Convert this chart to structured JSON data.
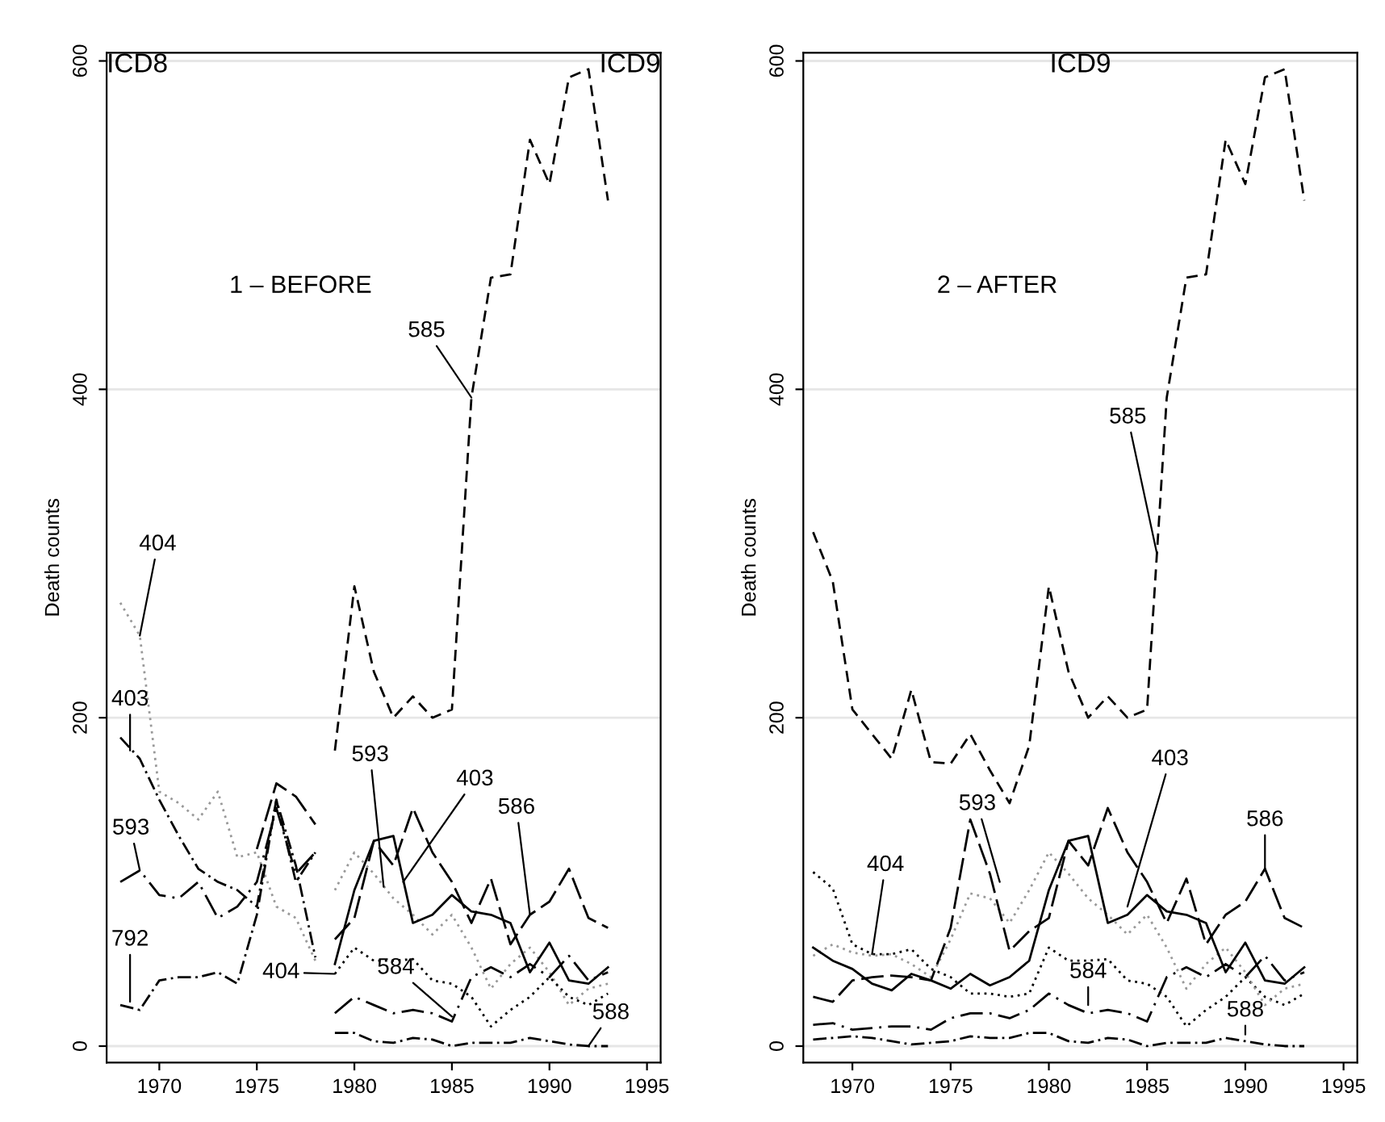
{
  "chart_data": [
    {
      "type": "line",
      "ylabel": "Death counts",
      "xlim": [
        1967.3,
        1995.7
      ],
      "ylim": [
        -10,
        605
      ],
      "xticks": [
        1970,
        1975,
        1980,
        1985,
        1990,
        1995
      ],
      "yticks": [
        0,
        200,
        400,
        600
      ],
      "grid": "y",
      "legend": false,
      "annotations": [
        "ICD8",
        "ICD9",
        "1 – BEFORE",
        {
          "text": "585",
          "x": 1986,
          "y": 395
        },
        {
          "text": "404",
          "x": 1969,
          "y": 250
        },
        {
          "text": "403",
          "x": 1968.5,
          "y": 180
        },
        {
          "text": "593",
          "x": 1969,
          "y": 107
        },
        {
          "text": "792",
          "x": 1968.5,
          "y": 27
        },
        {
          "text": "593",
          "x": 1981.5,
          "y": 97
        },
        {
          "text": "403",
          "x": 1982.5,
          "y": 100
        },
        {
          "text": "586",
          "x": 1989,
          "y": 80
        },
        {
          "text": "404",
          "x": 1979,
          "y": 44
        },
        {
          "text": "584",
          "x": 1985,
          "y": 18
        },
        {
          "text": "588",
          "x": 1992,
          "y": 0
        }
      ],
      "series": [
        {
          "color": "#000000",
          "line_style": "dashed",
          "x": [
            1979,
            1980,
            1981,
            1982,
            1983,
            1984,
            1985,
            1986,
            1987,
            1988,
            1989,
            1990,
            1991,
            1992,
            1993
          ],
          "values": [
            180,
            280,
            228,
            200,
            213,
            200,
            205,
            395,
            468,
            470,
            552,
            525,
            590,
            595,
            515
          ]
        },
        {
          "color": "#999999",
          "line_style": "dotted",
          "x": [
            1968,
            1969,
            1970,
            1971,
            1972,
            1973,
            1974,
            1975,
            1976,
            1977,
            1978
          ],
          "values": [
            270,
            250,
            155,
            148,
            138,
            155,
            115,
            118,
            85,
            78,
            52
          ]
        },
        {
          "color": "#000000",
          "line_style": "dashdot",
          "x": [
            1968,
            1969,
            1970,
            1971,
            1972,
            1973,
            1974,
            1975,
            1976,
            1977,
            1978
          ],
          "values": [
            188,
            175,
            150,
            128,
            108,
            100,
            95,
            85,
            150,
            110,
            54
          ]
        },
        {
          "color": "#000000",
          "line_style": "longdashdot",
          "x": [
            1968,
            1969,
            1970,
            1971,
            1972,
            1973,
            1974,
            1975,
            1976,
            1977,
            1978
          ],
          "values": [
            100,
            107,
            92,
            90,
            100,
            78,
            85,
            100,
            145,
            105,
            118
          ]
        },
        {
          "color": "#000000",
          "line_style": "longdash",
          "x": [
            1975,
            1976,
            1977,
            1978
          ],
          "values": [
            120,
            160,
            152,
            135
          ]
        },
        {
          "color": "#000000",
          "line_style": "dashdot",
          "x": [
            1968,
            1969,
            1970,
            1971,
            1972,
            1973,
            1974,
            1975,
            1976,
            1977,
            1978
          ],
          "values": [
            25,
            22,
            40,
            42,
            42,
            45,
            38,
            80,
            150,
            100,
            118
          ]
        },
        {
          "color": "#999999",
          "line_style": "dotted",
          "x": [
            1979,
            1980,
            1981,
            1982,
            1983,
            1984,
            1985,
            1986,
            1987,
            1988,
            1989,
            1990,
            1991,
            1992,
            1993
          ],
          "values": [
            95,
            118,
            105,
            90,
            80,
            68,
            80,
            60,
            35,
            50,
            60,
            45,
            25,
            35,
            38
          ]
        },
        {
          "color": "#000000",
          "line_style": "solid",
          "x": [
            1979,
            1980,
            1981,
            1982,
            1983,
            1984,
            1985,
            1986,
            1987,
            1988,
            1989,
            1990,
            1991,
            1992,
            1993
          ],
          "values": [
            50,
            95,
            125,
            128,
            75,
            80,
            92,
            82,
            80,
            75,
            45,
            63,
            40,
            38,
            48
          ]
        },
        {
          "color": "#000000",
          "line_style": "longdash",
          "x": [
            1979,
            1980,
            1981,
            1982,
            1983,
            1984,
            1985,
            1986,
            1987,
            1988,
            1989,
            1990,
            1991,
            1992,
            1993
          ],
          "values": [
            65,
            78,
            125,
            110,
            145,
            118,
            100,
            75,
            102,
            62,
            80,
            88,
            108,
            78,
            72
          ]
        },
        {
          "color": "#000000",
          "line_style": "dotted",
          "x": [
            1979,
            1980,
            1981,
            1982,
            1983,
            1984,
            1985,
            1986,
            1987,
            1988,
            1989,
            1990,
            1991,
            1992,
            1993
          ],
          "values": [
            44,
            60,
            52,
            52,
            53,
            40,
            38,
            30,
            12,
            22,
            30,
            42,
            30,
            25,
            32
          ]
        },
        {
          "color": "#000000",
          "line_style": "longdashdot",
          "x": [
            1979,
            1980,
            1981,
            1982,
            1983,
            1984,
            1985,
            1986,
            1987,
            1988,
            1989,
            1990,
            1991,
            1992,
            1993
          ],
          "values": [
            20,
            30,
            25,
            20,
            22,
            20,
            15,
            42,
            48,
            42,
            50,
            42,
            55,
            40,
            45
          ]
        },
        {
          "color": "#000000",
          "line_style": "dashdot",
          "x": [
            1979,
            1980,
            1981,
            1982,
            1983,
            1984,
            1985,
            1986,
            1987,
            1988,
            1989,
            1990,
            1991,
            1992,
            1993
          ],
          "values": [
            8,
            8,
            3,
            2,
            5,
            4,
            0,
            2,
            2,
            2,
            5,
            3,
            1,
            0,
            0
          ]
        }
      ]
    },
    {
      "type": "line",
      "ylabel": "Death counts",
      "xlim": [
        1967.5,
        1995.7
      ],
      "ylim": [
        -10,
        605
      ],
      "xticks": [
        1970,
        1975,
        1980,
        1985,
        1990,
        1995
      ],
      "yticks": [
        0,
        200,
        400,
        600
      ],
      "grid": "y",
      "legend": false,
      "annotations": [
        "ICD9",
        "2 – AFTER",
        {
          "text": "585",
          "x": 1985.5,
          "y": 300
        },
        {
          "text": "404",
          "x": 1971,
          "y": 56
        },
        {
          "text": "593",
          "x": 1977.5,
          "y": 100
        },
        {
          "text": "403",
          "x": 1984,
          "y": 85
        },
        {
          "text": "586",
          "x": 1991,
          "y": 108
        },
        {
          "text": "584",
          "x": 1982,
          "y": 25
        },
        {
          "text": "588",
          "x": 1990,
          "y": 7
        }
      ],
      "series": [
        {
          "color": "#000000",
          "line_style": "dashed",
          "x": [
            1968,
            1969,
            1970,
            1971,
            1972,
            1973,
            1974,
            1975,
            1976,
            1977,
            1978,
            1979,
            1980,
            1981,
            1982,
            1983,
            1984,
            1985,
            1986,
            1987,
            1988,
            1989,
            1990,
            1991,
            1992,
            1993
          ],
          "values": [
            313,
            283,
            205,
            190,
            175,
            217,
            173,
            172,
            190,
            168,
            148,
            183,
            280,
            228,
            200,
            213,
            200,
            205,
            395,
            468,
            470,
            552,
            525,
            590,
            595,
            515
          ]
        },
        {
          "color": "#000000",
          "line_style": "dotted",
          "x": [
            1968,
            1969,
            1970,
            1971,
            1972,
            1973,
            1974,
            1975,
            1976,
            1977,
            1978,
            1979,
            1980,
            1981,
            1982,
            1983,
            1984,
            1985,
            1986,
            1987,
            1988,
            1989,
            1990,
            1991,
            1992,
            1993
          ],
          "values": [
            106,
            96,
            62,
            56,
            56,
            59,
            47,
            42,
            32,
            32,
            30,
            32,
            60,
            52,
            52,
            53,
            40,
            38,
            30,
            12,
            22,
            30,
            42,
            30,
            25,
            32
          ]
        },
        {
          "color": "#999999",
          "line_style": "dotted",
          "x": [
            1968,
            1969,
            1970,
            1971,
            1972,
            1973,
            1974,
            1975,
            1976,
            1977,
            1978,
            1979,
            1980,
            1981,
            1982,
            1983,
            1984,
            1985,
            1986,
            1987,
            1988,
            1989,
            1990,
            1991,
            1992,
            1993
          ],
          "values": [
            55,
            62,
            57,
            55,
            56,
            50,
            42,
            65,
            93,
            90,
            75,
            95,
            118,
            105,
            90,
            80,
            68,
            80,
            60,
            35,
            50,
            60,
            45,
            25,
            35,
            38
          ]
        },
        {
          "color": "#000000",
          "line_style": "solid",
          "x": [
            1968,
            1969,
            1970,
            1971,
            1972,
            1973,
            1974,
            1975,
            1976,
            1977,
            1978,
            1979,
            1980,
            1981,
            1982,
            1983,
            1984,
            1985,
            1986,
            1987,
            1988,
            1989,
            1990,
            1991,
            1992,
            1993
          ],
          "values": [
            60,
            52,
            47,
            38,
            34,
            44,
            40,
            35,
            44,
            37,
            42,
            52,
            95,
            125,
            128,
            75,
            80,
            92,
            82,
            80,
            75,
            45,
            63,
            40,
            38,
            48
          ]
        },
        {
          "color": "#000000",
          "line_style": "longdash",
          "x": [
            1968,
            1969,
            1970,
            1971,
            1972,
            1973,
            1974,
            1975,
            1976,
            1977,
            1978,
            1979,
            1980,
            1981,
            1982,
            1983,
            1984,
            1985,
            1986,
            1987,
            1988,
            1989,
            1990,
            1991,
            1992,
            1993
          ],
          "values": [
            30,
            27,
            40,
            42,
            43,
            42,
            40,
            72,
            138,
            105,
            58,
            70,
            78,
            125,
            110,
            145,
            118,
            100,
            75,
            102,
            62,
            80,
            88,
            108,
            78,
            72
          ]
        },
        {
          "color": "#000000",
          "line_style": "longdashdot",
          "x": [
            1968,
            1969,
            1970,
            1971,
            1972,
            1973,
            1974,
            1975,
            1976,
            1977,
            1978,
            1979,
            1980,
            1981,
            1982,
            1983,
            1984,
            1985,
            1986,
            1987,
            1988,
            1989,
            1990,
            1991,
            1992,
            1993
          ],
          "values": [
            13,
            14,
            10,
            11,
            12,
            12,
            10,
            17,
            20,
            20,
            17,
            22,
            32,
            25,
            20,
            22,
            20,
            15,
            42,
            48,
            42,
            50,
            42,
            55,
            40,
            45
          ]
        },
        {
          "color": "#000000",
          "line_style": "dashdot",
          "x": [
            1968,
            1969,
            1970,
            1971,
            1972,
            1973,
            1974,
            1975,
            1976,
            1977,
            1978,
            1979,
            1980,
            1981,
            1982,
            1983,
            1984,
            1985,
            1986,
            1987,
            1988,
            1989,
            1990,
            1991,
            1992,
            1993
          ],
          "values": [
            4,
            5,
            6,
            5,
            3,
            1,
            2,
            3,
            6,
            5,
            5,
            8,
            8,
            3,
            2,
            5,
            4,
            0,
            2,
            2,
            2,
            5,
            3,
            1,
            0,
            0
          ]
        }
      ]
    }
  ]
}
